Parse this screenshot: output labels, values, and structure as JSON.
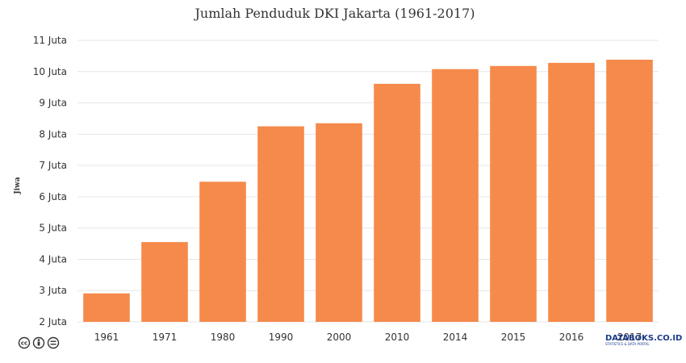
{
  "chart_data": {
    "type": "bar",
    "title": "Jumlah Penduduk DKI Jakarta (1961-2017)",
    "ylabel": "Jiwa",
    "xlabel": "",
    "categories": [
      "1961",
      "1971",
      "1980",
      "1990",
      "2000",
      "2010",
      "2014",
      "2015",
      "2016",
      "2017"
    ],
    "values": [
      2.91,
      4.55,
      6.48,
      8.25,
      8.35,
      9.61,
      10.08,
      10.18,
      10.28,
      10.38
    ],
    "ylim": [
      2,
      11
    ],
    "yticks": [
      2,
      3,
      4,
      5,
      6,
      7,
      8,
      9,
      10,
      11
    ],
    "ytick_suffix": " Juta",
    "bar_color": "#f58a4b",
    "grid": true,
    "legend": "none"
  },
  "footer": {
    "license_icons": [
      "creative-commons-icon",
      "attribution-icon",
      "no-derivatives-icon"
    ],
    "brand": "DATABOKS.CO.ID",
    "brand_sub": "STATISTICS & DATA PORTAL"
  }
}
